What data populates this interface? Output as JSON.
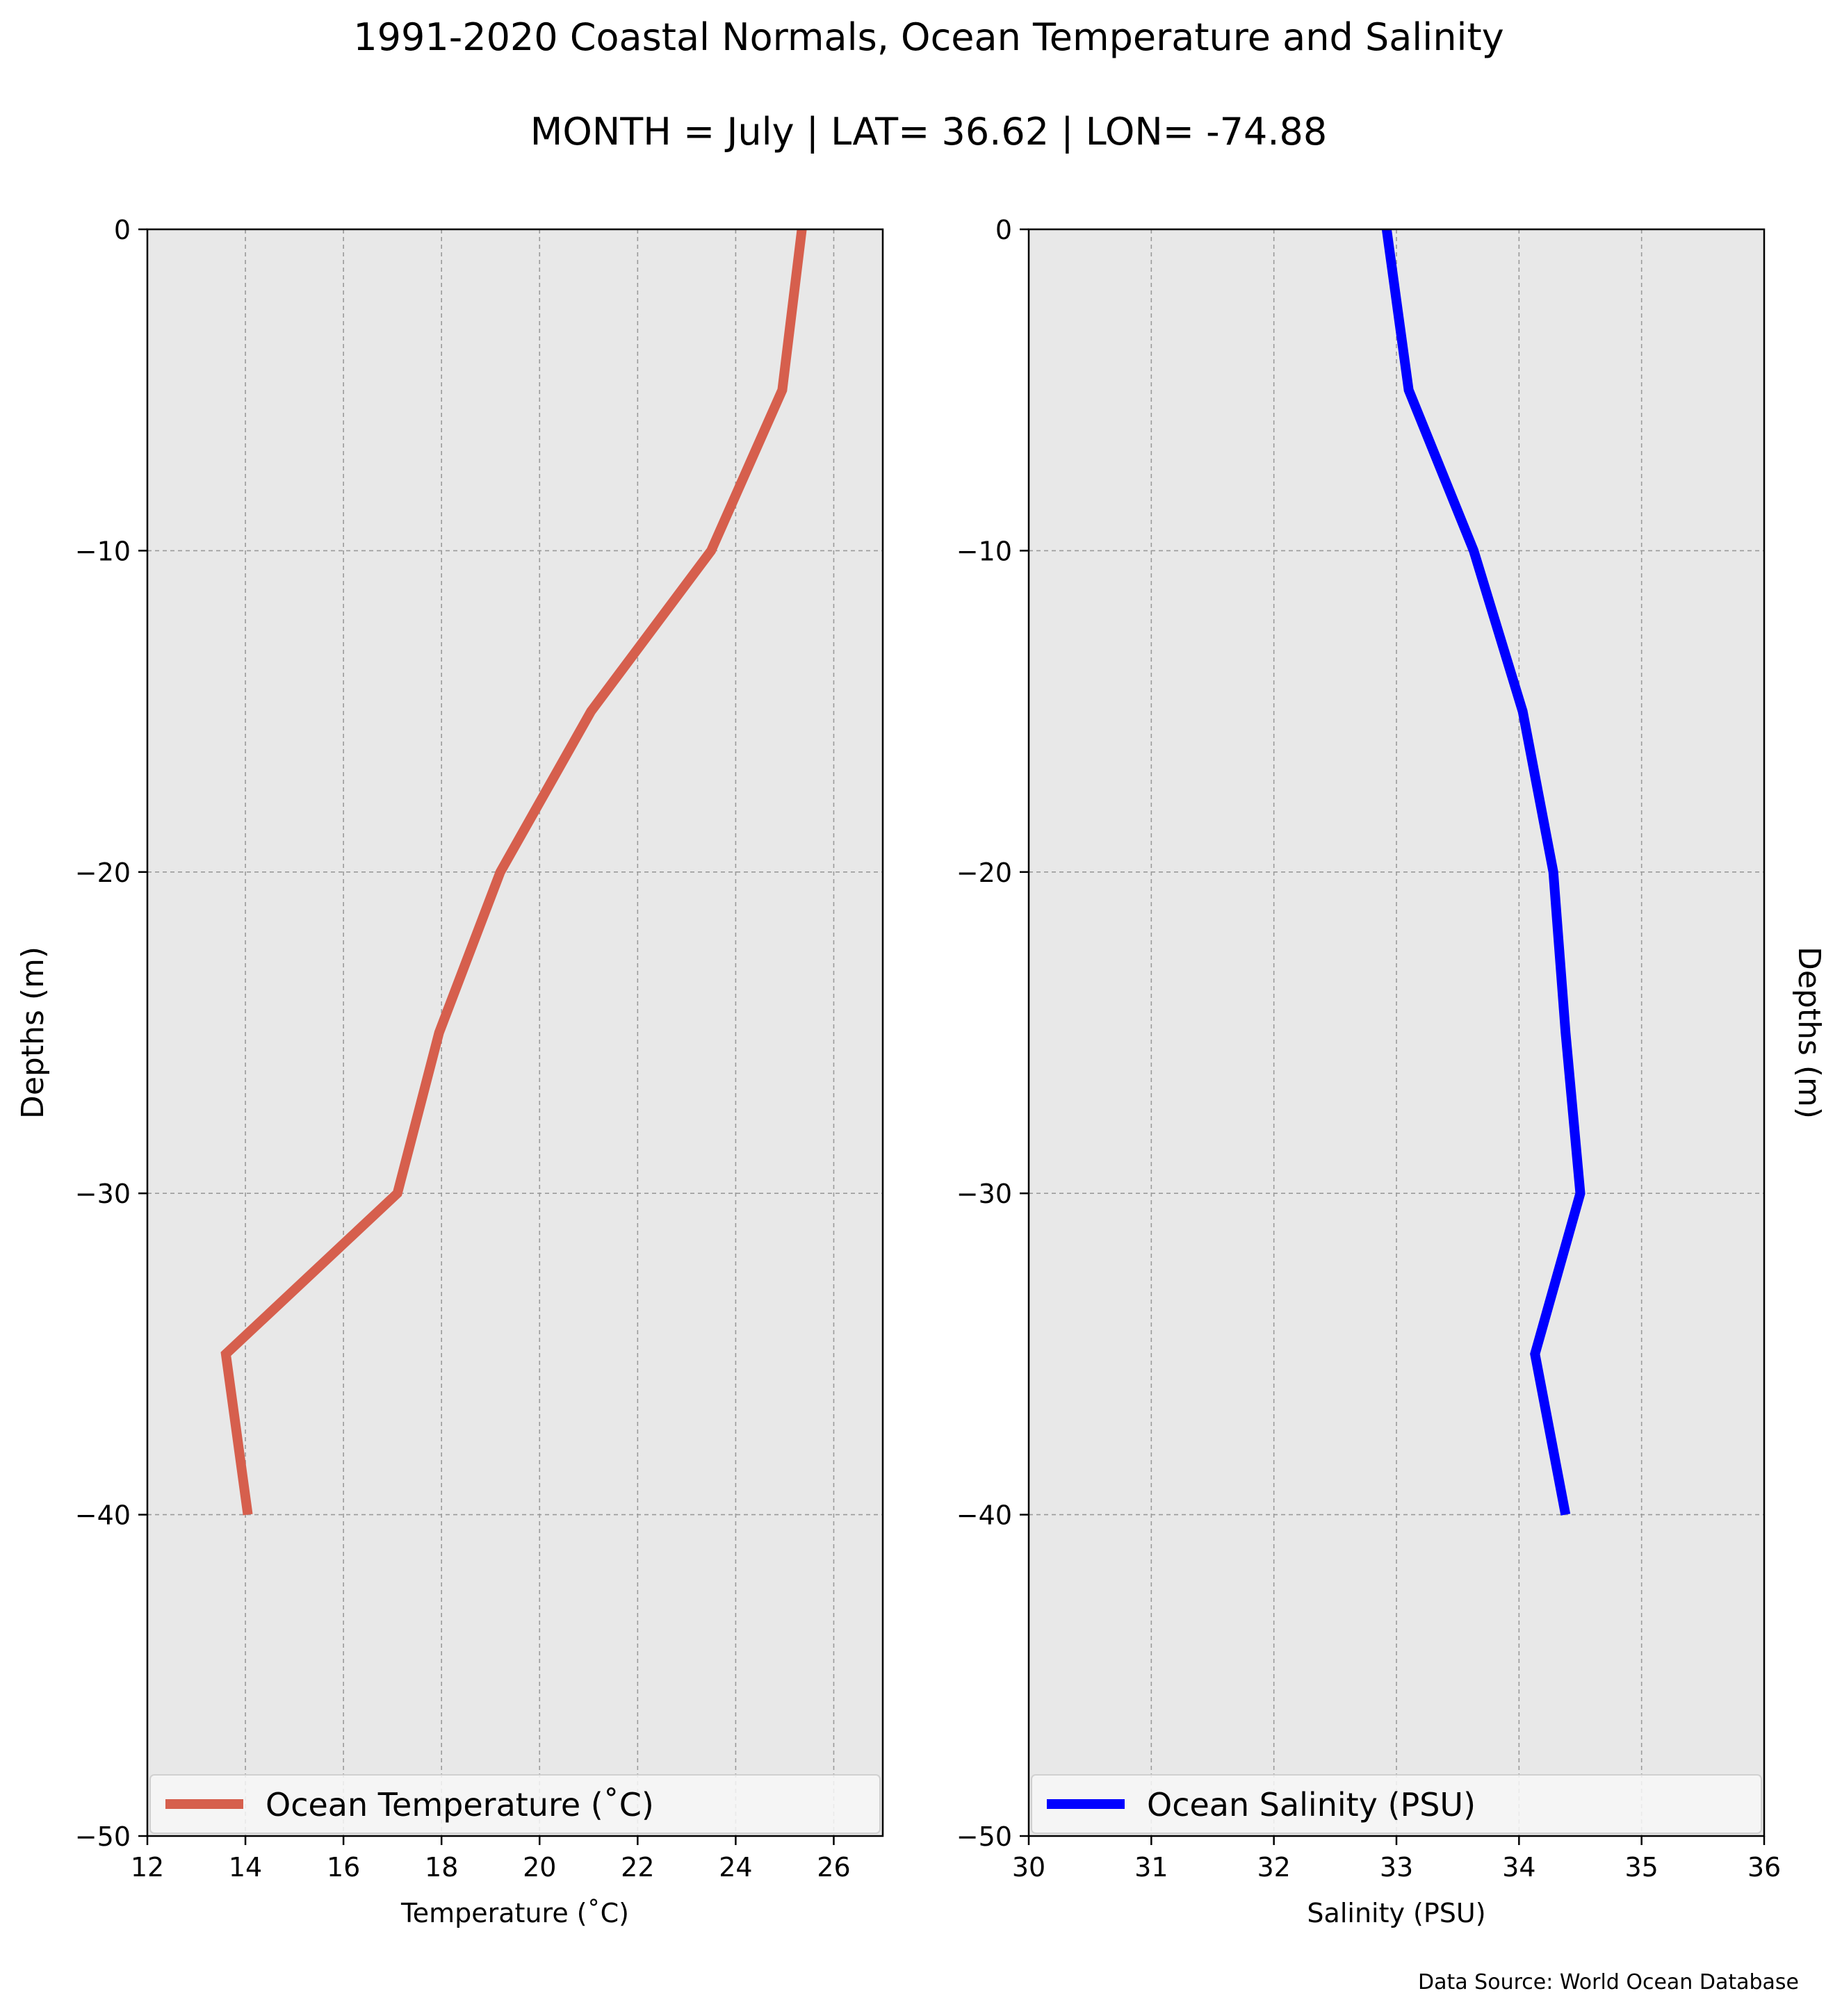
{
  "figure": {
    "title": "1991-2020 Coastal Normals, Ocean Temperature and Salinity",
    "subtitle": "MONTH = July | LAT= 36.62 | LON= -74.88",
    "source_note": "Data Source: World Ocean Database"
  },
  "chart_data": [
    {
      "type": "line",
      "panel": "left",
      "xlabel": "Temperature ($^\\circ$C)",
      "xlabel_display": "Temperature (˚C)",
      "ylabel": "Depths (m)",
      "xlim": [
        12,
        27
      ],
      "ylim": [
        -50,
        0
      ],
      "xticks": [
        12,
        14,
        16,
        18,
        20,
        22,
        24,
        26
      ],
      "yticks": [
        0,
        -10,
        -20,
        -30,
        -40,
        -50
      ],
      "ytick_labels": [
        "0",
        "−10",
        "−20",
        "−30",
        "−40",
        "−50"
      ],
      "grid": true,
      "legend_position": "bottom",
      "series": [
        {
          "name": "Ocean Temperature (˚C)",
          "color": "#d65f4d",
          "x": [
            25.35,
            24.95,
            23.5,
            21.05,
            19.2,
            17.95,
            17.1,
            13.6,
            14.05
          ],
          "y": [
            0,
            -5,
            -10,
            -15,
            -20,
            -25,
            -30,
            -35,
            -40
          ]
        }
      ]
    },
    {
      "type": "line",
      "panel": "right",
      "xlabel": "Salinity (PSU)",
      "ylabel": "Depths (m)",
      "xlim": [
        30,
        36
      ],
      "ylim": [
        -50,
        0
      ],
      "xticks": [
        30,
        31,
        32,
        33,
        34,
        35,
        36
      ],
      "yticks": [
        0,
        -10,
        -20,
        -30,
        -40,
        -50
      ],
      "ytick_labels": [
        "0",
        "−10",
        "−20",
        "−30",
        "−40",
        "−50"
      ],
      "grid": true,
      "legend_position": "bottom",
      "series": [
        {
          "name": "Ocean Salinity (PSU)",
          "color": "#0000ff",
          "x": [
            32.92,
            33.1,
            33.63,
            34.03,
            34.28,
            34.38,
            34.5,
            34.13,
            34.38
          ],
          "y": [
            0,
            -5,
            -10,
            -15,
            -20,
            -25,
            -30,
            -35,
            -40
          ]
        }
      ]
    }
  ],
  "colors": {
    "axes_background": "#e8e8e8",
    "grid": "#9a9a9a",
    "legend_background": "#f7f7f7"
  }
}
